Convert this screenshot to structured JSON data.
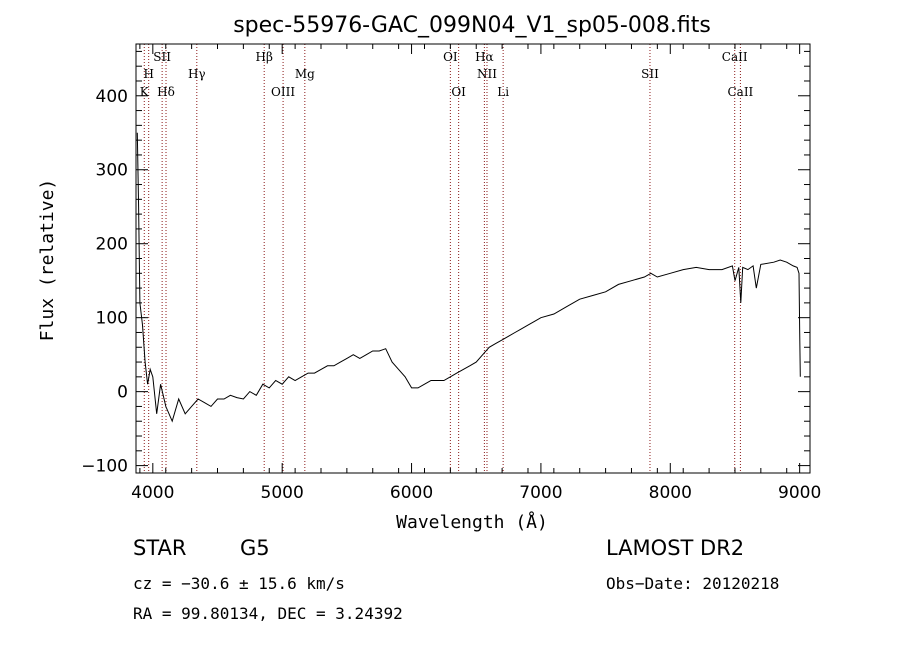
{
  "chart_data": {
    "type": "line",
    "title": "spec-55976-GAC_099N04_V1_sp05-008.fits",
    "xlabel": "Wavelength (Å)",
    "ylabel": "Flux (relative)",
    "xlim": [
      3870,
      9080
    ],
    "ylim": [
      -110,
      470
    ],
    "x_ticks": [
      4000,
      5000,
      6000,
      7000,
      8000,
      9000
    ],
    "x_tick_labels": [
      "4000",
      "5000",
      "6000",
      "7000",
      "8000",
      "9000"
    ],
    "y_ticks": [
      -100,
      0,
      100,
      200,
      300,
      400
    ],
    "y_tick_labels": [
      "−100",
      "0",
      "100",
      "200",
      "300",
      "400"
    ],
    "series": [
      {
        "name": "flux",
        "color": "#000000",
        "x": [
          3880,
          3890,
          3900,
          3920,
          3940,
          3960,
          3980,
          4000,
          4030,
          4060,
          4100,
          4150,
          4200,
          4250,
          4300,
          4350,
          4400,
          4450,
          4500,
          4550,
          4600,
          4650,
          4700,
          4750,
          4800,
          4850,
          4900,
          4950,
          5000,
          5050,
          5100,
          5150,
          5200,
          5250,
          5300,
          5350,
          5400,
          5450,
          5500,
          5550,
          5600,
          5650,
          5700,
          5750,
          5800,
          5850,
          5900,
          5950,
          6000,
          6050,
          6100,
          6150,
          6200,
          6250,
          6300,
          6350,
          6400,
          6450,
          6500,
          6550,
          6600,
          6650,
          6700,
          6750,
          6800,
          6850,
          6900,
          6950,
          7000,
          7100,
          7200,
          7300,
          7400,
          7500,
          7600,
          7700,
          7800,
          7850,
          7900,
          8000,
          8100,
          8200,
          8300,
          8400,
          8480,
          8500,
          8530,
          8545,
          8560,
          8600,
          8640,
          8665,
          8700,
          8800,
          8850,
          8900,
          8950,
          8980,
          8995,
          9000,
          9005
        ],
        "values": [
          350,
          250,
          120,
          90,
          40,
          10,
          30,
          20,
          -30,
          10,
          -20,
          -40,
          -10,
          -30,
          -20,
          -10,
          -15,
          -20,
          -10,
          -10,
          -5,
          -8,
          -10,
          0,
          -5,
          10,
          5,
          15,
          10,
          20,
          15,
          20,
          25,
          25,
          30,
          35,
          35,
          40,
          45,
          50,
          45,
          50,
          55,
          55,
          58,
          40,
          30,
          20,
          5,
          5,
          10,
          15,
          15,
          15,
          20,
          25,
          30,
          35,
          40,
          50,
          60,
          65,
          70,
          75,
          80,
          85,
          90,
          95,
          100,
          105,
          115,
          125,
          130,
          135,
          145,
          150,
          155,
          160,
          155,
          160,
          165,
          168,
          165,
          165,
          170,
          150,
          168,
          120,
          168,
          165,
          170,
          140,
          172,
          175,
          178,
          175,
          170,
          168,
          160,
          80,
          20
        ]
      }
    ],
    "line_labels": [
      {
        "name": "K",
        "x": 3934,
        "row": 3
      },
      {
        "name": "H",
        "x": 3968,
        "row": 2
      },
      {
        "name": "SII",
        "x": 4072,
        "row": 1
      },
      {
        "name": "Hδ",
        "x": 4102,
        "row": 3
      },
      {
        "name": "Hγ",
        "x": 4340,
        "row": 2
      },
      {
        "name": "Hβ",
        "x": 4861,
        "row": 1
      },
      {
        "name": "OIII",
        "x": 5007,
        "row": 3
      },
      {
        "name": "Mg",
        "x": 5175,
        "row": 2
      },
      {
        "name": "OI",
        "x": 6300,
        "row": 1
      },
      {
        "name": "OI",
        "x": 6364,
        "row": 3
      },
      {
        "name": "Hα",
        "x": 6563,
        "row": 1
      },
      {
        "name": "NII",
        "x": 6583,
        "row": 2
      },
      {
        "name": "Li",
        "x": 6708,
        "row": 3
      },
      {
        "name": "SII",
        "x": 7843,
        "row": 2
      },
      {
        "name": "CaII",
        "x": 8498,
        "row": 1
      },
      {
        "name": "CaII",
        "x": 8542,
        "row": 3
      }
    ],
    "line_marker_color": "#8b1a1a"
  },
  "footer": {
    "object_class": "STAR",
    "subclass": "G5",
    "survey": "LAMOST DR2",
    "cz": "cz = −30.6 ± 15.6 km/s",
    "obs_date": "Obs−Date: 20120218",
    "radec": "RA =  99.80134, DEC =   3.24392"
  }
}
